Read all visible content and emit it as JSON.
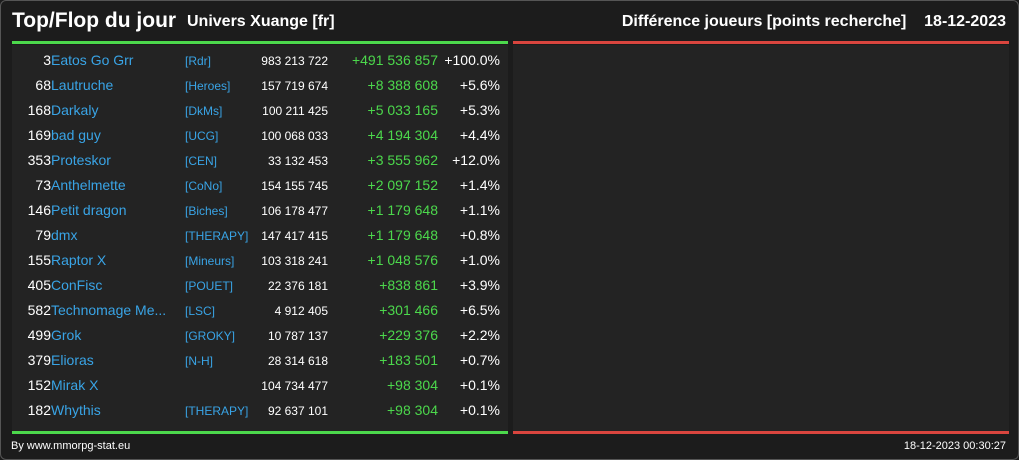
{
  "header": {
    "title": "Top/Flop du jour",
    "universe": "Univers Xuange [fr]",
    "metric": "Différence joueurs [points recherche]",
    "date": "18-12-2023"
  },
  "colors": {
    "background": "#1c1c1c",
    "panel": "#232323",
    "top_bar": "#4cd84c",
    "flop_bar": "#d9453e",
    "link": "#39a4e6",
    "positive": "#4cd84c"
  },
  "top_rows": [
    {
      "rank": "3",
      "name": "Eatos Go Grr",
      "alliance": "[Rdr]",
      "points": "983 213 722",
      "diff": "+491 536 857",
      "pct": "+100.0%"
    },
    {
      "rank": "68",
      "name": "Lautruche",
      "alliance": "[Heroes]",
      "points": "157 719 674",
      "diff": "+8 388 608",
      "pct": "+5.6%"
    },
    {
      "rank": "168",
      "name": "Darkaly",
      "alliance": "[DkMs]",
      "points": "100 211 425",
      "diff": "+5 033 165",
      "pct": "+5.3%"
    },
    {
      "rank": "169",
      "name": "bad guy",
      "alliance": "[UCG]",
      "points": "100 068 033",
      "diff": "+4 194 304",
      "pct": "+4.4%"
    },
    {
      "rank": "353",
      "name": "Proteskor",
      "alliance": "[CEN]",
      "points": "33 132 453",
      "diff": "+3 555 962",
      "pct": "+12.0%"
    },
    {
      "rank": "73",
      "name": "Anthelmette",
      "alliance": "[CoNo]",
      "points": "154 155 745",
      "diff": "+2 097 152",
      "pct": "+1.4%"
    },
    {
      "rank": "146",
      "name": "Petit dragon",
      "alliance": "[Biches]",
      "points": "106 178 477",
      "diff": "+1 179 648",
      "pct": "+1.1%"
    },
    {
      "rank": "79",
      "name": "dmx",
      "alliance": "[THERAPY]",
      "points": "147 417 415",
      "diff": "+1 179 648",
      "pct": "+0.8%"
    },
    {
      "rank": "155",
      "name": "Raptor X",
      "alliance": "[Mineurs]",
      "points": "103 318 241",
      "diff": "+1 048 576",
      "pct": "+1.0%"
    },
    {
      "rank": "405",
      "name": "ConFisc",
      "alliance": "[POUET]",
      "points": "22 376 181",
      "diff": "+838 861",
      "pct": "+3.9%"
    },
    {
      "rank": "582",
      "name": "Technomage Me...",
      "alliance": "[LSC]",
      "points": "4 912 405",
      "diff": "+301 466",
      "pct": "+6.5%"
    },
    {
      "rank": "499",
      "name": "Grok",
      "alliance": "[GROKY]",
      "points": "10 787 137",
      "diff": "+229 376",
      "pct": "+2.2%"
    },
    {
      "rank": "379",
      "name": "Elioras",
      "alliance": "[N-H]",
      "points": "28 314 618",
      "diff": "+183 501",
      "pct": "+0.7%"
    },
    {
      "rank": "152",
      "name": "Mirak X",
      "alliance": "",
      "points": "104 734 477",
      "diff": "+98 304",
      "pct": "+0.1%"
    },
    {
      "rank": "182",
      "name": "Whythis",
      "alliance": "[THERAPY]",
      "points": "92 637 101",
      "diff": "+98 304",
      "pct": "+0.1%"
    }
  ],
  "footer": {
    "credit": "By www.mmorpg-stat.eu",
    "timestamp": "18-12-2023 00:30:27"
  }
}
